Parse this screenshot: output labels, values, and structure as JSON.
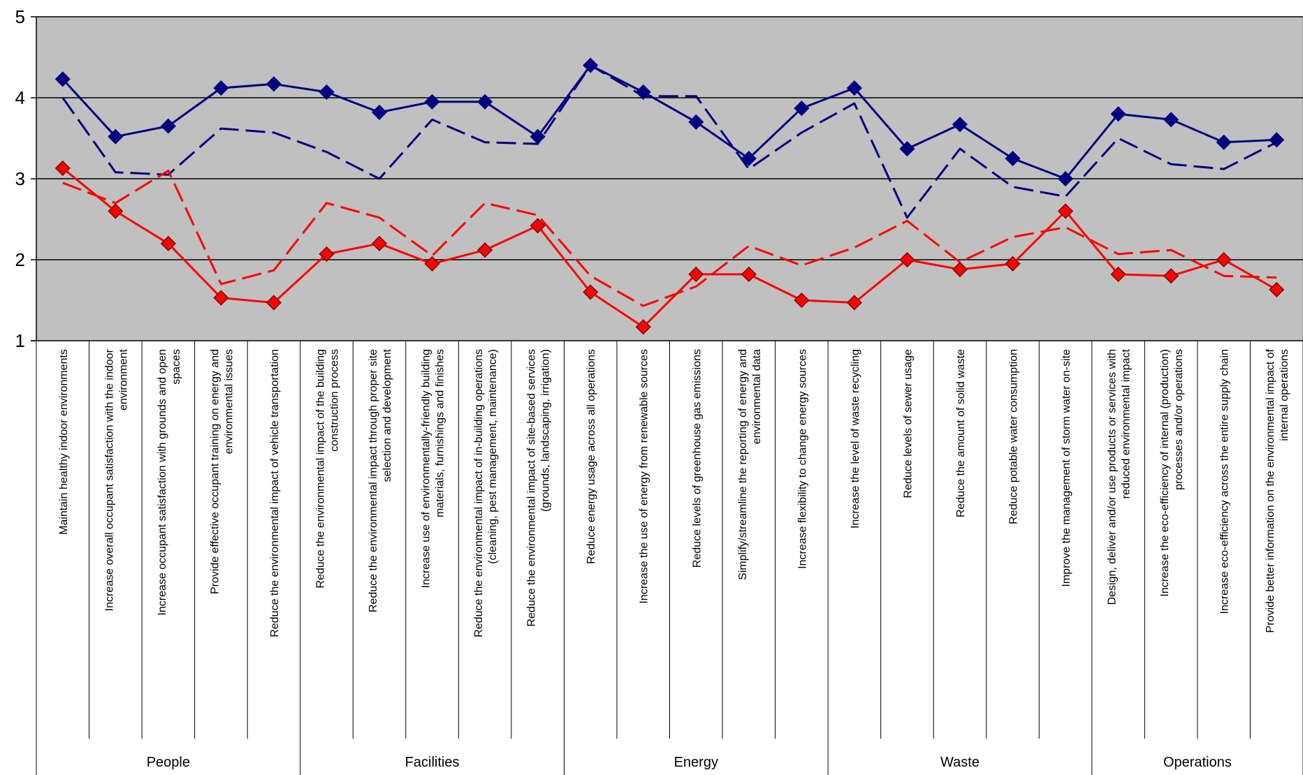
{
  "chart_data": {
    "type": "line",
    "ylim": [
      1,
      5
    ],
    "yticks": [
      "1",
      "2",
      "3",
      "4",
      "5"
    ],
    "grid": true,
    "legend": "none",
    "colors": {
      "plot_background": "#c0c0c0",
      "blue": "#000080",
      "red": "#ff0000",
      "marker_outline_red": "#800000"
    },
    "categories": [
      [
        "Maintain healthy indoor environments"
      ],
      [
        "Increase overall occupant satisfaction with the indoor",
        "environment"
      ],
      [
        "Increase occupant satisfaction with grounds and open",
        "spaces"
      ],
      [
        "Provide effective occupant training on energy and",
        "environmental issues"
      ],
      [
        "Reduce the environmental impact of vehicle transportation"
      ],
      [
        "Reduce the environmental impact of the building",
        "construction process"
      ],
      [
        "Reduce the environmental impact through proper site",
        "selection and development"
      ],
      [
        "Increase use of environmentally-friendly building",
        "materials, furnishings and finishes"
      ],
      [
        "Reduce the environmental impact of in-building operations",
        "(cleaning, pest management, maintenance)"
      ],
      [
        "Reduce the environmental impact of site-based services",
        "(grounds, landscaping, irrigation)"
      ],
      [
        "Reduce energy usage across all operations"
      ],
      [
        "Increase the use of energy from renewable sources"
      ],
      [
        "Reduce levels of greenhouse gas emissions"
      ],
      [
        "Simplify/streamline the reporting of energy and",
        "environmental data"
      ],
      [
        "Increase flexibility to change energy sources"
      ],
      [
        "Increase the level of waste recycling"
      ],
      [
        "Reduce levels of sewer usage"
      ],
      [
        "Reduce the amount of solid waste"
      ],
      [
        "Reduce potable water consumption"
      ],
      [
        "Improve the management of storm water on-site"
      ],
      [
        "Design, deliver and/or use products or services with",
        "reduced environmental impact"
      ],
      [
        "Increase the eco-efficiency of internal (production)",
        "processes and/or operations"
      ],
      [
        "Increase eco-efficiency across the entire supply chain"
      ],
      [
        "Provide better information on the environmental impact of",
        "internal operations"
      ]
    ],
    "groups": [
      {
        "label": "People",
        "count": 5
      },
      {
        "label": "Facilities",
        "count": 5
      },
      {
        "label": "Energy",
        "count": 5
      },
      {
        "label": "Waste",
        "count": 5
      },
      {
        "label": "Operations",
        "count": 4
      }
    ],
    "series": [
      {
        "color": "#000080",
        "style": "solid",
        "marker": "diamond",
        "values": [
          4.23,
          3.52,
          3.65,
          4.12,
          4.17,
          4.07,
          3.82,
          3.95,
          3.95,
          3.52,
          4.4,
          4.07,
          3.7,
          3.25,
          3.87,
          4.12,
          3.37,
          3.67,
          3.25,
          3.0,
          3.8,
          3.73,
          3.45,
          3.48
        ]
      },
      {
        "color": "#000080",
        "style": "dashed",
        "marker": "none",
        "values": [
          4.0,
          3.08,
          3.05,
          3.62,
          3.57,
          3.33,
          3.0,
          3.73,
          3.45,
          3.43,
          4.4,
          4.02,
          4.02,
          3.12,
          3.57,
          3.93,
          2.52,
          3.37,
          2.9,
          2.78,
          3.5,
          3.18,
          3.12,
          3.45
        ]
      },
      {
        "color": "#ff0000",
        "style": "solid",
        "marker": "diamond",
        "values": [
          3.13,
          2.6,
          2.2,
          1.53,
          1.47,
          2.07,
          2.2,
          1.95,
          2.12,
          2.42,
          1.6,
          1.17,
          1.82,
          1.82,
          1.5,
          1.47,
          2.0,
          1.88,
          1.95,
          2.6,
          1.82,
          1.8,
          2.0,
          1.63
        ]
      },
      {
        "color": "#ff0000",
        "style": "dashed",
        "marker": "none",
        "values": [
          2.95,
          2.7,
          3.1,
          1.7,
          1.87,
          2.7,
          2.52,
          2.05,
          2.7,
          2.55,
          1.8,
          1.43,
          1.67,
          2.17,
          1.93,
          2.15,
          2.48,
          1.97,
          2.28,
          2.4,
          2.07,
          2.12,
          1.8,
          1.78
        ]
      }
    ]
  }
}
